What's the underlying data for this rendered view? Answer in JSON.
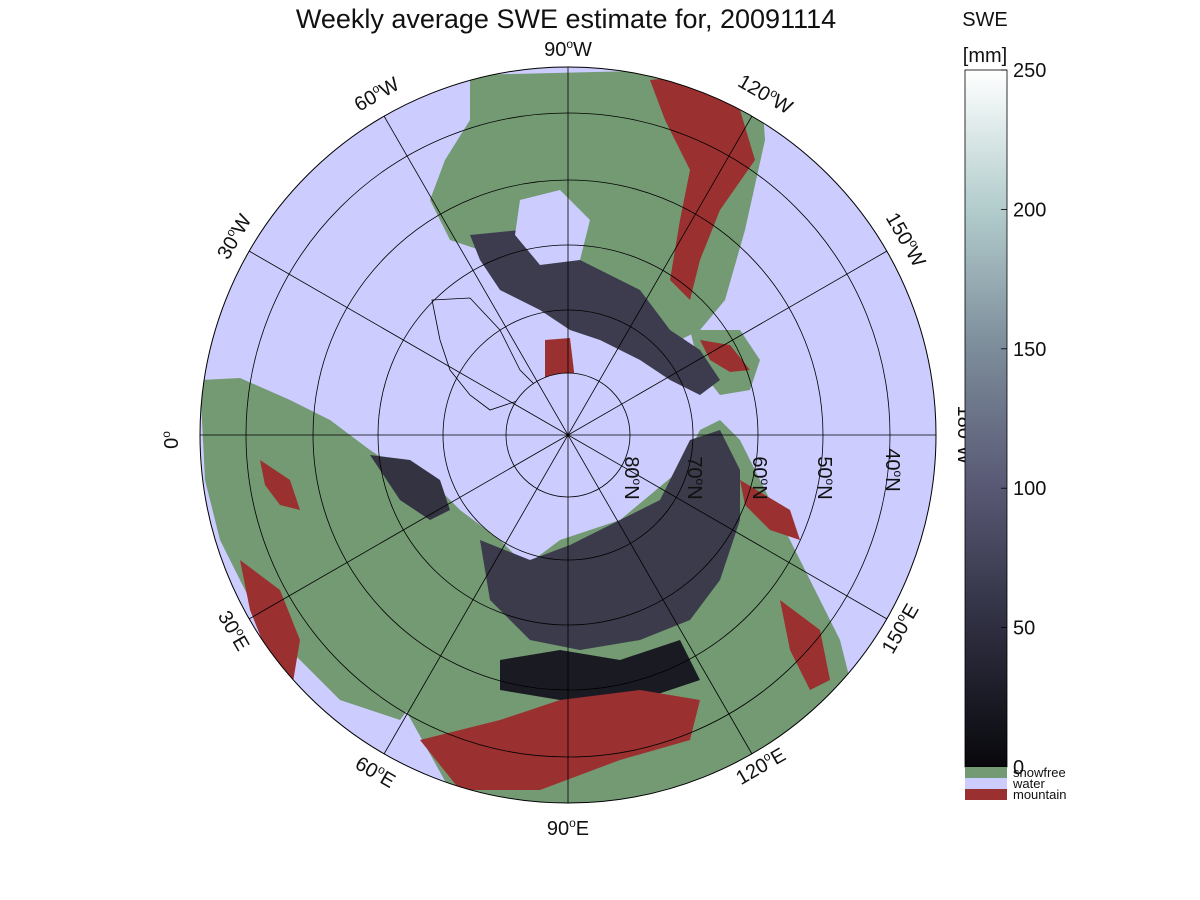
{
  "map": {
    "title": "Weekly average SWE estimate for, 20091114",
    "projection": "north-polar-stereographic",
    "longitude_labels": [
      {
        "lon": "90",
        "sup": "o",
        "hemi": "W"
      },
      {
        "lon": "120",
        "sup": "o",
        "hemi": "W"
      },
      {
        "lon": "150",
        "sup": "o",
        "hemi": "W"
      },
      {
        "lon": "180",
        "sup": "o",
        "hemi": "W"
      },
      {
        "lon": "150",
        "sup": "o",
        "hemi": "E"
      },
      {
        "lon": "120",
        "sup": "o",
        "hemi": "E"
      },
      {
        "lon": "90",
        "sup": "o",
        "hemi": "E"
      },
      {
        "lon": "60",
        "sup": "o",
        "hemi": "E"
      },
      {
        "lon": "30",
        "sup": "o",
        "hemi": "E"
      },
      {
        "lon": "0",
        "sup": "o",
        "hemi": ""
      },
      {
        "lon": "30",
        "sup": "o",
        "hemi": "W"
      },
      {
        "lon": "60",
        "sup": "o",
        "hemi": "W"
      }
    ],
    "latitude_labels": [
      {
        "lat": "80",
        "sup": "o",
        "hemi": "N"
      },
      {
        "lat": "70",
        "sup": "o",
        "hemi": "N"
      },
      {
        "lat": "60",
        "sup": "o",
        "hemi": "N"
      },
      {
        "lat": "50",
        "sup": "o",
        "hemi": "N"
      },
      {
        "lat": "40",
        "sup": "o",
        "hemi": "N"
      }
    ],
    "colors": {
      "water": "#ccccff",
      "snowfree": "#739a73",
      "mountain": "#9b3030",
      "snow_low": "#0a0a12",
      "snow_mid": "#55556f",
      "snow_high": "#ffffff"
    }
  },
  "colorbar": {
    "label_line1": "SWE",
    "label_line2": "[mm]",
    "ticks": [
      "0",
      "50",
      "100",
      "150",
      "200",
      "250"
    ],
    "range": [
      0,
      250
    ],
    "legend": [
      {
        "label": "snowfree",
        "color": "#739a73"
      },
      {
        "label": "water",
        "color": "#ccccff"
      },
      {
        "label": "mountain",
        "color": "#9b3030"
      }
    ]
  }
}
